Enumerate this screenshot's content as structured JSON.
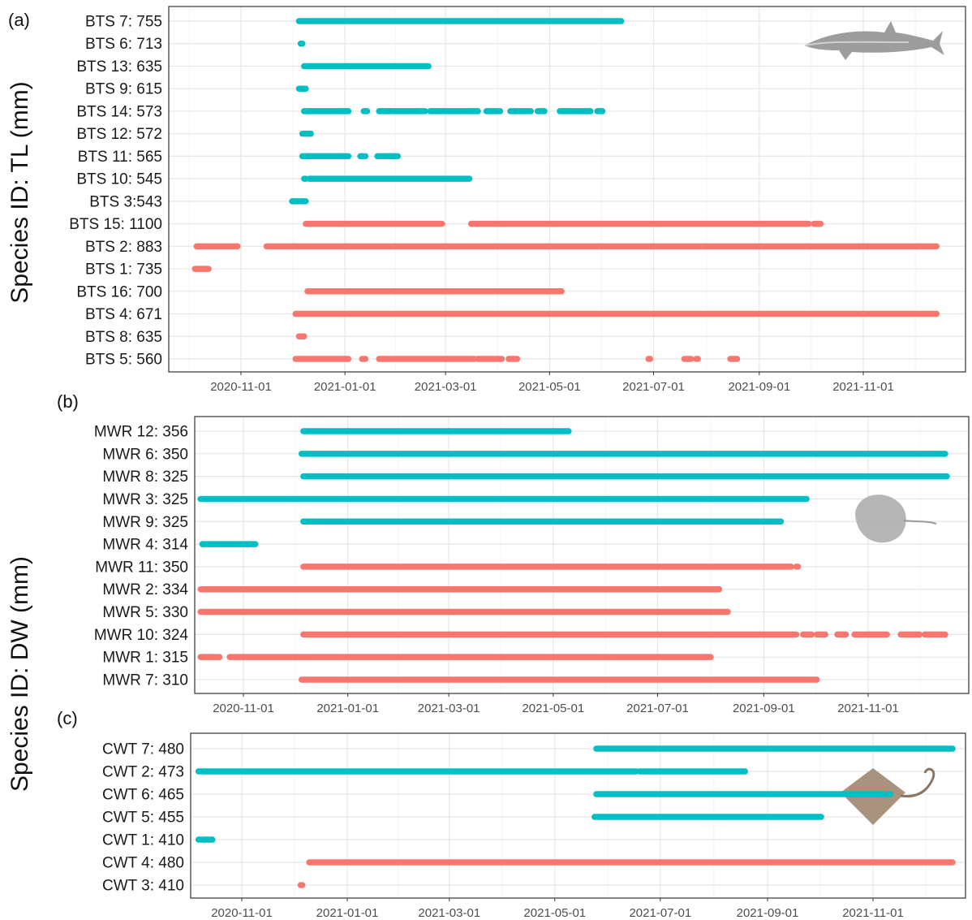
{
  "y_axis_title": "Species ID: DW (mm)",
  "chart_data": [
    {
      "type": "timeline",
      "panel_label": "(a)",
      "y_title": "Species ID: TL (mm)",
      "x_ticks": [
        "2020-11-01",
        "2021-01-01",
        "2021-03-01",
        "2021-05-01",
        "2021-07-01",
        "2021-09-01",
        "2021-11-01"
      ],
      "xlim": [
        "2020-09-20",
        "2021-12-31"
      ],
      "grid": true,
      "colors": {
        "teal": "#00BFC4",
        "salmon": "#F8766D"
      },
      "silhouette": "shark-silhouette",
      "rows": [
        {
          "label": "BTS 7: 755",
          "color": "teal",
          "segments": [
            [
              "2020-12-05",
              "2021-06-12"
            ]
          ]
        },
        {
          "label": "BTS 6: 713",
          "color": "teal",
          "segments": [
            [
              "2020-12-06",
              "2020-12-07"
            ]
          ]
        },
        {
          "label": "BTS 13: 635",
          "color": "teal",
          "segments": [
            [
              "2020-12-08",
              "2021-02-19"
            ]
          ]
        },
        {
          "label": "BTS 9: 615",
          "color": "teal",
          "segments": [
            [
              "2020-12-05",
              "2020-12-09"
            ]
          ]
        },
        {
          "label": "BTS 14: 573",
          "color": "teal",
          "segments": [
            [
              "2020-12-08",
              "2021-01-03"
            ],
            [
              "2021-01-12",
              "2021-01-14"
            ],
            [
              "2021-01-21",
              "2021-02-17"
            ],
            [
              "2021-02-20",
              "2021-03-20"
            ],
            [
              "2021-03-25",
              "2021-04-02"
            ],
            [
              "2021-04-08",
              "2021-04-20"
            ],
            [
              "2021-04-24",
              "2021-04-28"
            ],
            [
              "2021-05-07",
              "2021-05-25"
            ],
            [
              "2021-05-29",
              "2021-06-01"
            ]
          ]
        },
        {
          "label": "BTS 12: 572",
          "color": "teal",
          "segments": [
            [
              "2020-12-07",
              "2020-12-12"
            ]
          ]
        },
        {
          "label": "BTS 11: 565",
          "color": "teal",
          "segments": [
            [
              "2020-12-07",
              "2021-01-03"
            ],
            [
              "2021-01-10",
              "2021-01-13"
            ],
            [
              "2021-01-20",
              "2021-02-01"
            ]
          ]
        },
        {
          "label": "BTS 10: 545",
          "color": "teal",
          "segments": [
            [
              "2020-12-08",
              "2020-12-09"
            ],
            [
              "2020-12-11",
              "2021-03-15"
            ]
          ]
        },
        {
          "label": "BTS 3:543",
          "color": "teal",
          "segments": [
            [
              "2020-12-01",
              "2020-12-09"
            ]
          ]
        },
        {
          "label": "BTS 15: 1100",
          "color": "salmon",
          "segments": [
            [
              "2020-12-09",
              "2021-02-27"
            ],
            [
              "2021-03-16",
              "2021-09-30"
            ],
            [
              "2021-10-03",
              "2021-10-07"
            ]
          ]
        },
        {
          "label": "BTS 2: 883",
          "color": "salmon",
          "segments": [
            [
              "2020-10-06",
              "2020-10-30"
            ],
            [
              "2020-11-16",
              "2021-12-14"
            ]
          ]
        },
        {
          "label": "BTS 1: 735",
          "color": "salmon",
          "segments": [
            [
              "2020-10-05",
              "2020-10-13"
            ]
          ]
        },
        {
          "label": "BTS 16: 700",
          "color": "salmon",
          "segments": [
            [
              "2020-12-10",
              "2021-05-08"
            ]
          ]
        },
        {
          "label": "BTS 4: 671",
          "color": "salmon",
          "segments": [
            [
              "2020-12-03",
              "2021-12-14"
            ]
          ]
        },
        {
          "label": "BTS 8: 635",
          "color": "salmon",
          "segments": [
            [
              "2020-12-05",
              "2020-12-08"
            ]
          ]
        },
        {
          "label": "BTS 5: 560",
          "color": "salmon",
          "segments": [
            [
              "2020-12-03",
              "2021-01-03"
            ],
            [
              "2021-01-11",
              "2021-01-13"
            ],
            [
              "2021-01-21",
              "2021-03-18"
            ],
            [
              "2021-03-20",
              "2021-04-03"
            ],
            [
              "2021-04-07",
              "2021-04-12"
            ],
            [
              "2021-06-28",
              "2021-06-29"
            ],
            [
              "2021-07-19",
              "2021-07-23"
            ],
            [
              "2021-07-26",
              "2021-07-27"
            ],
            [
              "2021-08-15",
              "2021-08-19"
            ]
          ]
        }
      ]
    },
    {
      "type": "timeline",
      "panel_label": "(b)",
      "x_ticks": [
        "2020-11-01",
        "2021-01-01",
        "2021-03-01",
        "2021-05-01",
        "2021-07-01",
        "2021-09-01",
        "2021-11-01"
      ],
      "xlim": [
        "2020-09-20",
        "2021-12-31"
      ],
      "grid": true,
      "colors": {
        "teal": "#00BFC4",
        "salmon": "#F8766D"
      },
      "silhouette": "ray-silhouette",
      "rows": [
        {
          "label": "MWR 12: 356",
          "color": "teal",
          "segments": [
            [
              "2020-12-06",
              "2021-05-10"
            ]
          ]
        },
        {
          "label": "MWR 6: 350",
          "color": "teal",
          "segments": [
            [
              "2020-12-05",
              "2021-12-16"
            ]
          ]
        },
        {
          "label": "MWR 8: 325",
          "color": "teal",
          "segments": [
            [
              "2020-12-06",
              "2021-12-17"
            ]
          ]
        },
        {
          "label": "MWR 3: 325",
          "color": "teal",
          "segments": [
            [
              "2020-10-07",
              "2021-09-26"
            ]
          ]
        },
        {
          "label": "MWR 9: 325",
          "color": "teal",
          "segments": [
            [
              "2020-12-06",
              "2021-09-11"
            ]
          ]
        },
        {
          "label": "MWR 4: 314",
          "color": "teal",
          "segments": [
            [
              "2020-10-08",
              "2020-11-08"
            ]
          ]
        },
        {
          "label": "MWR 11: 350",
          "color": "salmon",
          "segments": [
            [
              "2020-12-06",
              "2021-09-17"
            ],
            [
              "2021-09-20",
              "2021-09-21"
            ]
          ]
        },
        {
          "label": "MWR 2: 334",
          "color": "salmon",
          "segments": [
            [
              "2020-10-07",
              "2021-08-06"
            ]
          ]
        },
        {
          "label": "MWR 5: 330",
          "color": "salmon",
          "segments": [
            [
              "2020-10-07",
              "2021-08-11"
            ]
          ]
        },
        {
          "label": "MWR 10: 324",
          "color": "salmon",
          "segments": [
            [
              "2020-12-06",
              "2021-09-20"
            ],
            [
              "2021-09-24",
              "2021-09-29"
            ],
            [
              "2021-10-02",
              "2021-10-07"
            ],
            [
              "2021-10-14",
              "2021-10-19"
            ],
            [
              "2021-10-24",
              "2021-11-12"
            ],
            [
              "2021-11-20",
              "2021-12-01"
            ],
            [
              "2021-12-04",
              "2021-12-16"
            ]
          ]
        },
        {
          "label": "MWR 1: 315",
          "color": "salmon",
          "segments": [
            [
              "2020-10-07",
              "2020-10-18"
            ],
            [
              "2020-10-24",
              "2021-08-01"
            ]
          ]
        },
        {
          "label": "MWR 7: 310",
          "color": "salmon",
          "segments": [
            [
              "2020-12-05",
              "2021-10-02"
            ]
          ]
        }
      ]
    },
    {
      "type": "timeline",
      "panel_label": "(c)",
      "x_ticks": [
        "2020-11-01",
        "2021-01-01",
        "2021-03-01",
        "2021-05-01",
        "2021-07-01",
        "2021-09-01",
        "2021-11-01"
      ],
      "xlim": [
        "2020-09-20",
        "2021-12-31"
      ],
      "grid": true,
      "colors": {
        "teal": "#00BFC4",
        "salmon": "#F8766D"
      },
      "silhouette": "stingray-silhouette",
      "rows": [
        {
          "label": "CWT 7: 480",
          "color": "teal",
          "segments": [
            [
              "2021-05-25",
              "2021-12-17"
            ]
          ]
        },
        {
          "label": "CWT 2: 473",
          "color": "teal",
          "segments": [
            [
              "2020-10-07",
              "2021-06-17"
            ],
            [
              "2021-06-19",
              "2021-08-19"
            ]
          ]
        },
        {
          "label": "CWT 6: 465",
          "color": "teal",
          "segments": [
            [
              "2021-05-25",
              "2021-11-08"
            ],
            [
              "2021-11-10",
              "2021-11-11"
            ]
          ]
        },
        {
          "label": "CWT 5: 455",
          "color": "teal",
          "segments": [
            [
              "2021-05-24",
              "2021-10-02"
            ]
          ]
        },
        {
          "label": "CWT 1: 410",
          "color": "teal",
          "segments": [
            [
              "2020-10-07",
              "2020-10-15"
            ]
          ]
        },
        {
          "label": "CWT 4: 480",
          "color": "salmon",
          "segments": [
            [
              "2020-12-10",
              "2021-12-17"
            ]
          ]
        },
        {
          "label": "CWT 3: 410",
          "color": "salmon",
          "segments": [
            [
              "2020-12-05",
              "2020-12-06"
            ]
          ]
        }
      ]
    }
  ]
}
